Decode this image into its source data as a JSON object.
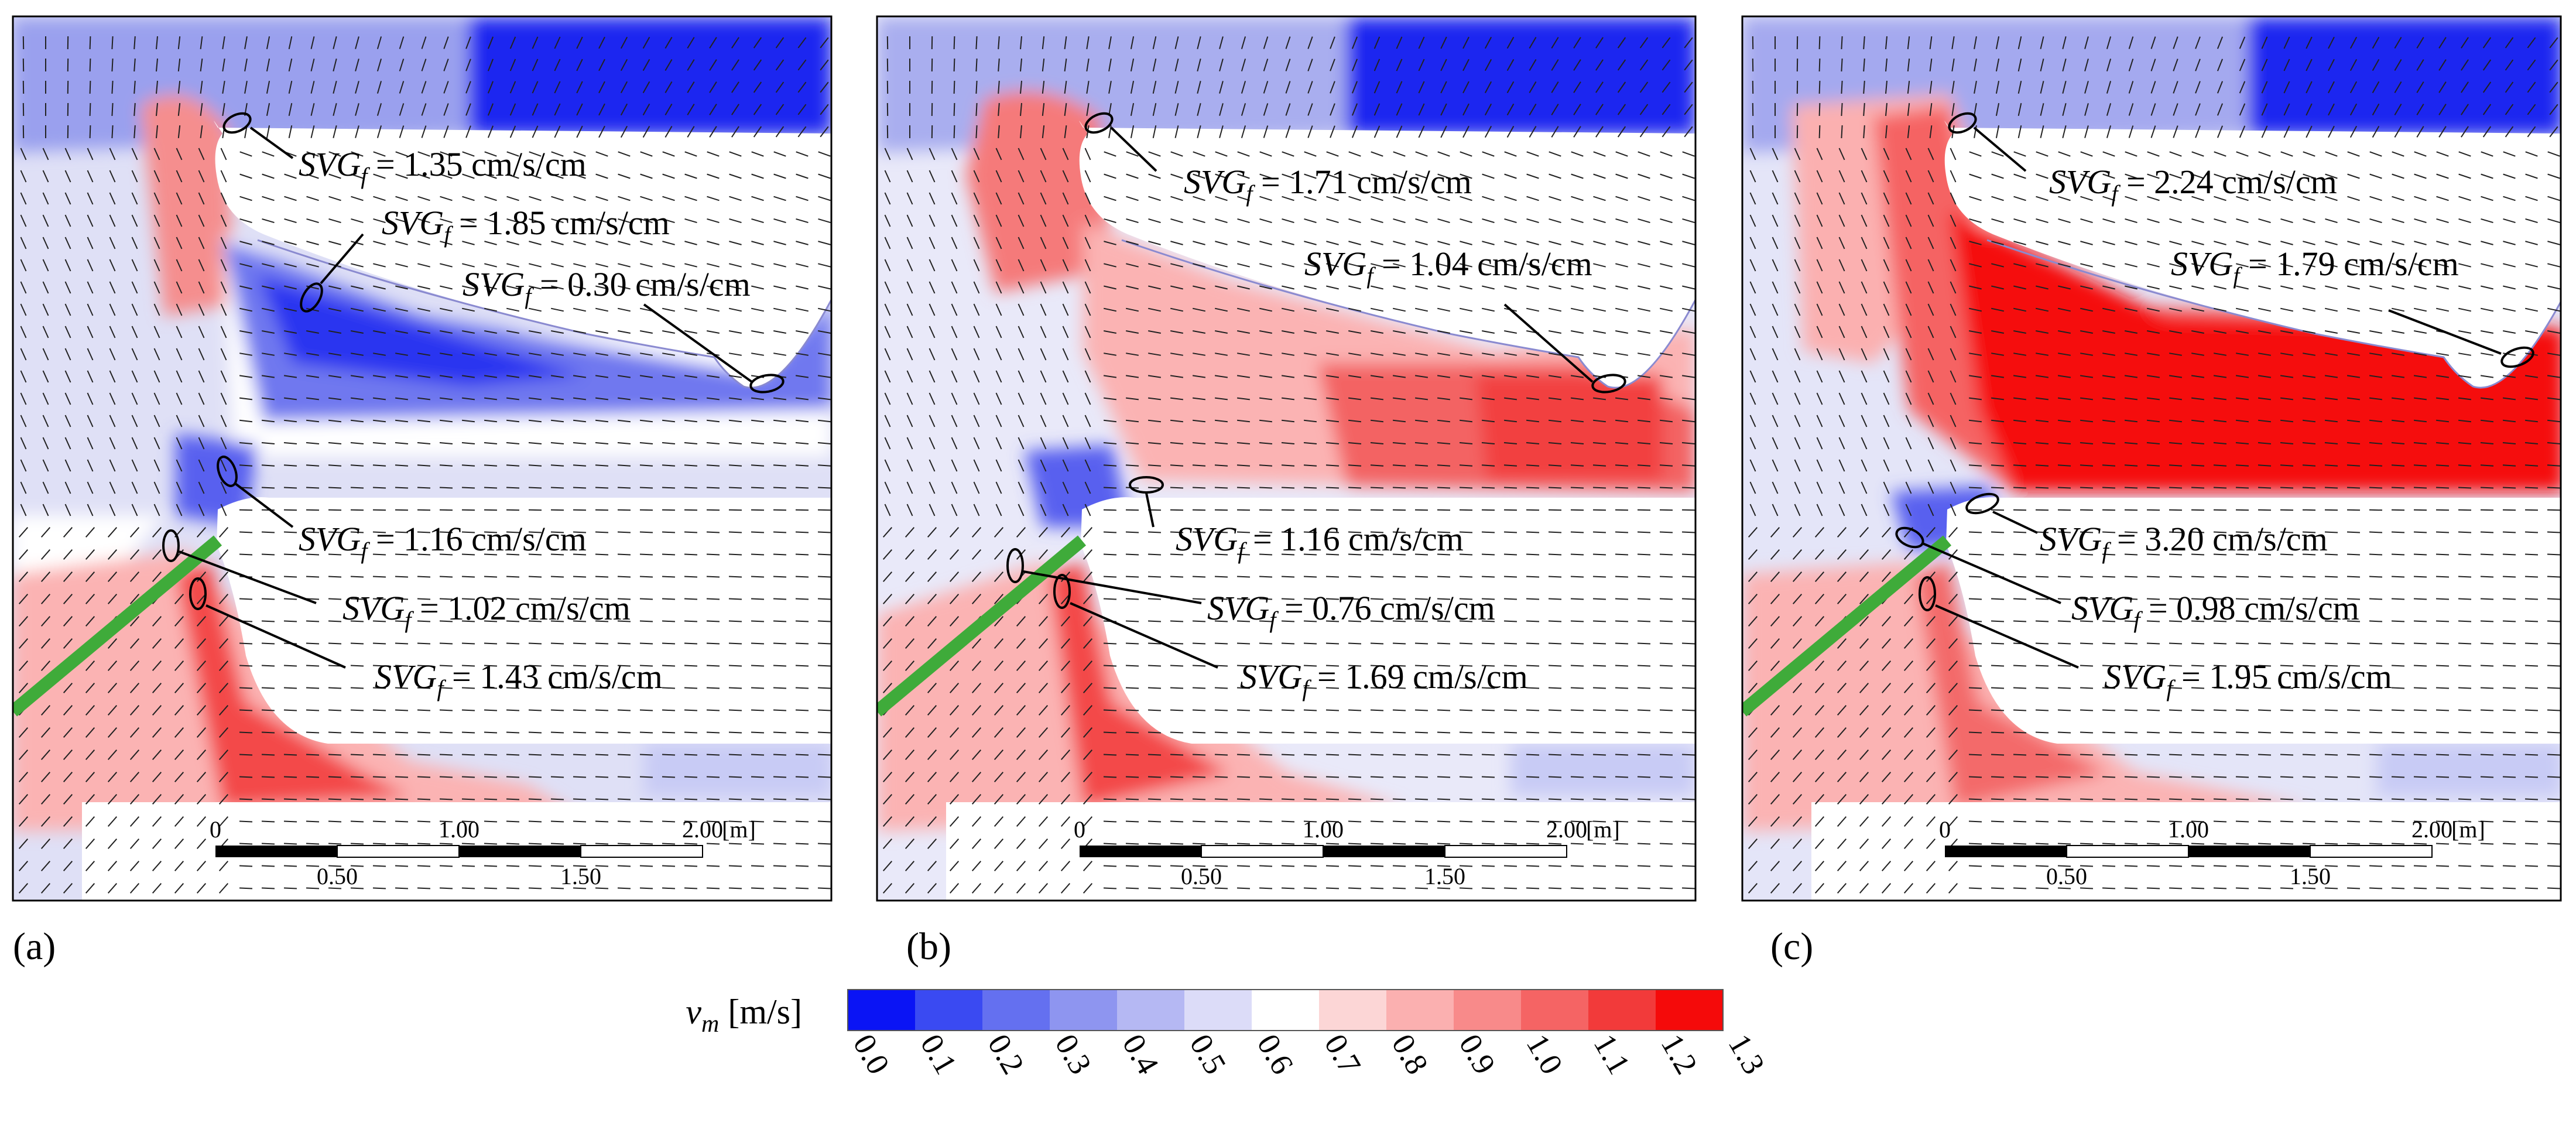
{
  "figure_type": "Flow velocity contour maps with velocity vectors and spatial velocity gradient annotations",
  "panels": [
    {
      "id": "a",
      "label": "(a)",
      "annotations": [
        {
          "symbol": "SVG",
          "subscript": "f",
          "value": "1.35",
          "unit": "cm/s/cm"
        },
        {
          "symbol": "SVG",
          "subscript": "f",
          "value": "1.85",
          "unit": "cm/s/cm"
        },
        {
          "symbol": "SVG",
          "subscript": "f",
          "value": "0.30",
          "unit": "cm/s/cm"
        },
        {
          "symbol": "SVG",
          "subscript": "f",
          "value": "1.16",
          "unit": "cm/s/cm"
        },
        {
          "symbol": "SVG",
          "subscript": "f",
          "value": "1.02",
          "unit": "cm/s/cm"
        },
        {
          "symbol": "SVG",
          "subscript": "f",
          "value": "1.43",
          "unit": "cm/s/cm"
        }
      ]
    },
    {
      "id": "b",
      "label": "(b)",
      "annotations": [
        {
          "symbol": "SVG",
          "subscript": "f",
          "value": "1.71",
          "unit": "cm/s/cm"
        },
        {
          "symbol": "SVG",
          "subscript": "f",
          "value": "1.04",
          "unit": "cm/s/cm"
        },
        {
          "symbol": "SVG",
          "subscript": "f",
          "value": "1.16",
          "unit": "cm/s/cm"
        },
        {
          "symbol": "SVG",
          "subscript": "f",
          "value": "0.76",
          "unit": "cm/s/cm"
        },
        {
          "symbol": "SVG",
          "subscript": "f",
          "value": "1.69",
          "unit": "cm/s/cm"
        }
      ]
    },
    {
      "id": "c",
      "label": "(c)",
      "annotations": [
        {
          "symbol": "SVG",
          "subscript": "f",
          "value": "2.24",
          "unit": "cm/s/cm"
        },
        {
          "symbol": "SVG",
          "subscript": "f",
          "value": "1.79",
          "unit": "cm/s/cm"
        },
        {
          "symbol": "SVG",
          "subscript": "f",
          "value": "3.20",
          "unit": "cm/s/cm"
        },
        {
          "symbol": "SVG",
          "subscript": "f",
          "value": "0.98",
          "unit": "cm/s/cm"
        },
        {
          "symbol": "SVG",
          "subscript": "f",
          "value": "1.95",
          "unit": "cm/s/cm"
        }
      ]
    }
  ],
  "scale_bar": {
    "top_labels": [
      "0",
      "1.00",
      "2.00"
    ],
    "bottom_labels": [
      "0.50",
      "1.50"
    ],
    "unit": "[m]"
  },
  "colorbar": {
    "variable": "v",
    "subscript": "m",
    "unit": "[m/s]",
    "ticks": [
      "0.0",
      "0.1",
      "0.2",
      "0.3",
      "0.4",
      "0.5",
      "0.6",
      "0.7",
      "0.8",
      "0.9",
      "1.0",
      "1.1",
      "1.2",
      "1.3"
    ],
    "colors": [
      "#0a14f5",
      "#3a4af2",
      "#6470f0",
      "#8e95f0",
      "#b5b8f3",
      "#dcdcf8",
      "#ffffff",
      "#fcd6d6",
      "#fbb0b0",
      "#f88a8a",
      "#f56464",
      "#f23a3a",
      "#f50a0a"
    ]
  }
}
